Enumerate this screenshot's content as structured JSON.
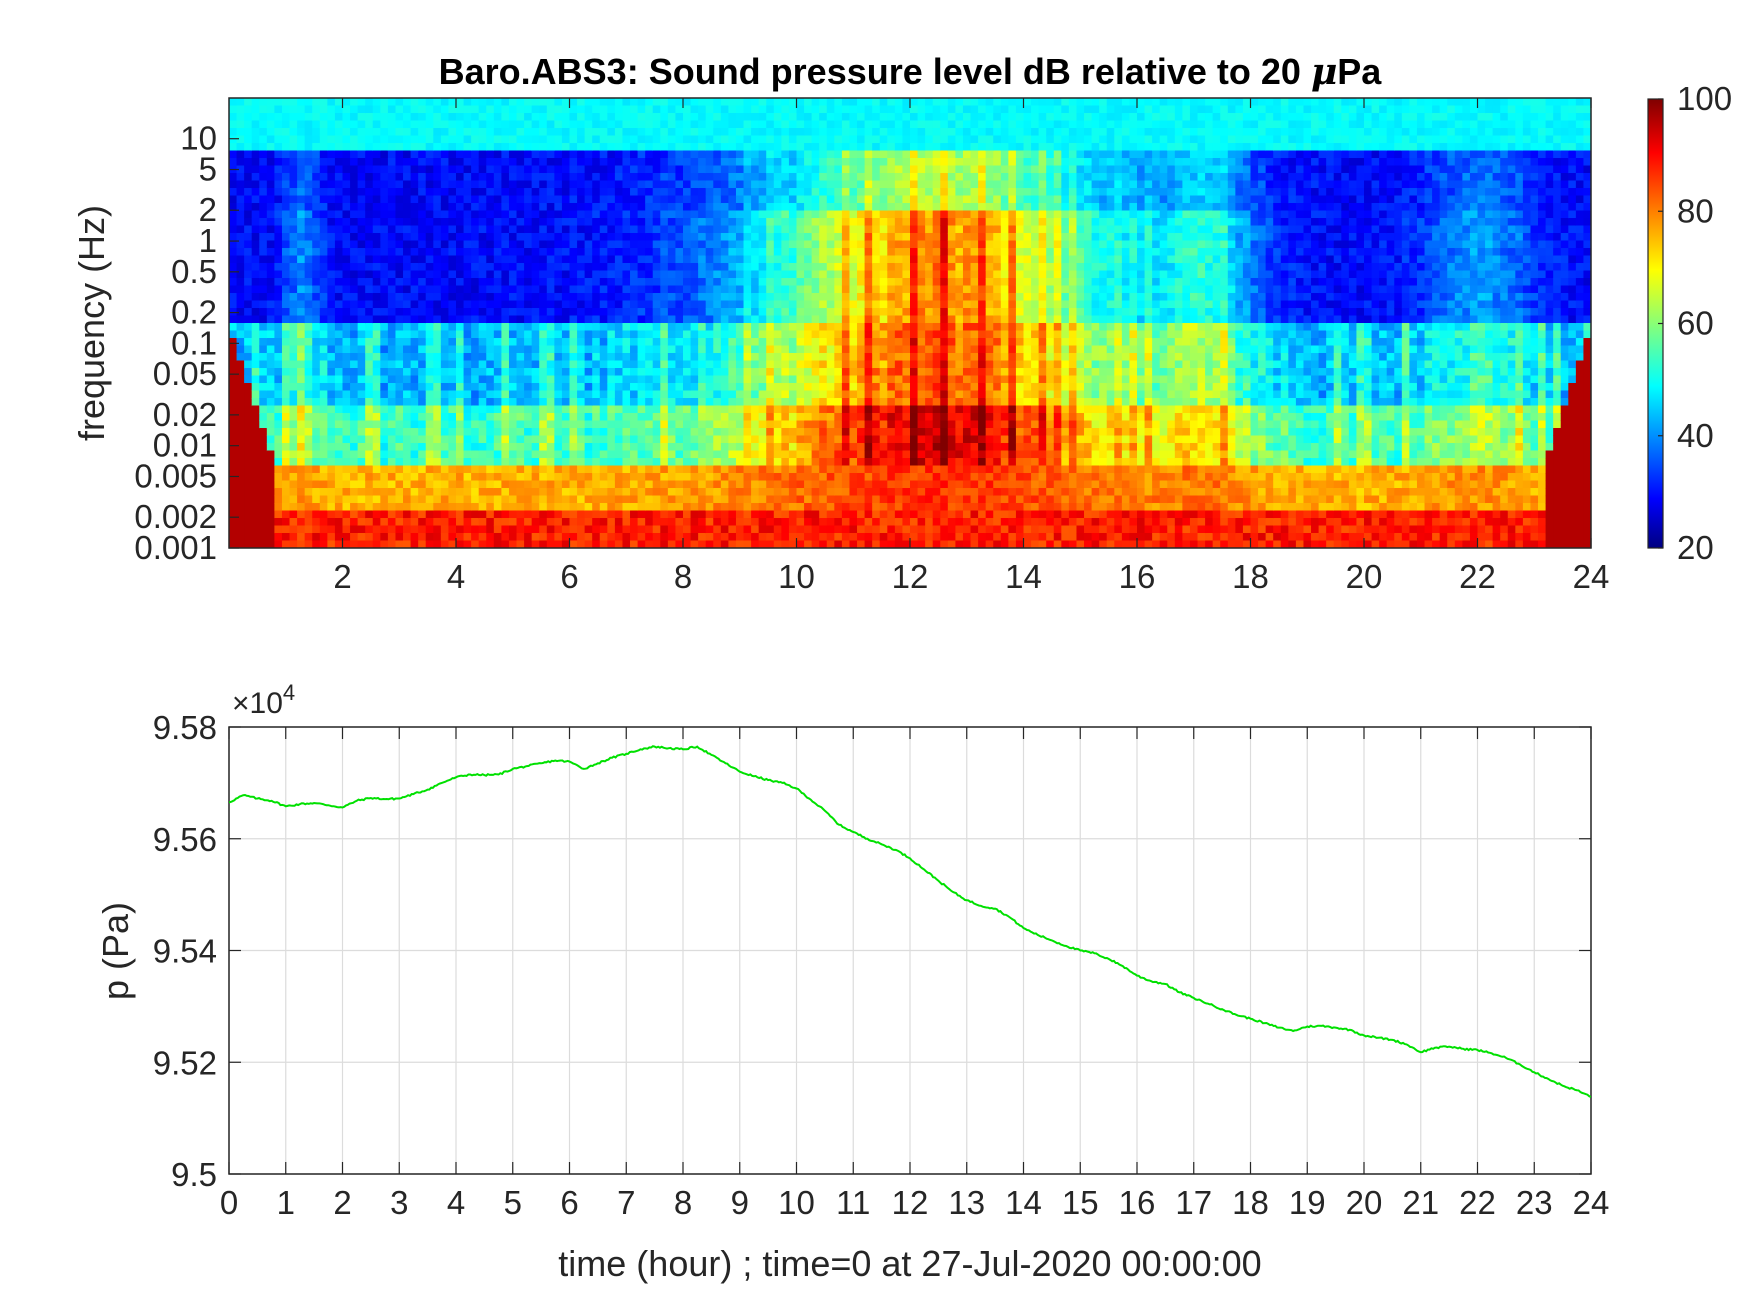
{
  "chart_data": [
    {
      "type": "heatmap",
      "title_main": "Baro.ABS3: Sound pressure level dB relative to 20 ",
      "title_mu": "μ",
      "title_unit": "Pa",
      "ylabel": "frequency (Hz)",
      "xlabel": "",
      "xlim": [
        0,
        24
      ],
      "x_ticks": [
        2,
        4,
        6,
        8,
        10,
        12,
        14,
        16,
        18,
        20,
        22,
        24
      ],
      "y_scale": "log",
      "ylim": [
        0.001,
        25
      ],
      "y_ticks": [
        {
          "value": 10,
          "label": "10"
        },
        {
          "value": 5,
          "label": "5"
        },
        {
          "value": 2,
          "label": "2"
        },
        {
          "value": 1,
          "label": "1"
        },
        {
          "value": 0.5,
          "label": "0.5"
        },
        {
          "value": 0.2,
          "label": "0.2"
        },
        {
          "value": 0.1,
          "label": "0.1"
        },
        {
          "value": 0.05,
          "label": "0.05"
        },
        {
          "value": 0.02,
          "label": "0.02"
        },
        {
          "value": 0.01,
          "label": "0.01"
        },
        {
          "value": 0.005,
          "label": "0.005"
        },
        {
          "value": 0.002,
          "label": "0.002"
        },
        {
          "value": 0.001,
          "label": "0.001"
        }
      ],
      "colormap": "jet",
      "colorbar": {
        "range": [
          20,
          100
        ],
        "ticks": [
          20,
          40,
          60,
          80,
          100
        ]
      },
      "description_of_values": "Energy approx. 45 dB at 10-25 Hz, 25-35 dB at 0.1-5 Hz outside 9-17 h, rising to 70-90 dB over 9-17 h; 80-100 dB below 0.005 Hz throughout.",
      "grid": false
    },
    {
      "type": "line",
      "ylabel": "p (Pa)",
      "xlabel": "time (hour) ; time=0 at 27-Jul-2020 00:00:00",
      "exponent_label": "×10",
      "exponent_power": "4",
      "xlim": [
        0,
        24
      ],
      "ylim": [
        9.5,
        9.58
      ],
      "y_scale_factor": 10000,
      "x_ticks": [
        0,
        1,
        2,
        3,
        4,
        5,
        6,
        7,
        8,
        9,
        10,
        11,
        12,
        13,
        14,
        15,
        16,
        17,
        18,
        19,
        20,
        21,
        22,
        23,
        24
      ],
      "y_ticks": [
        9.5,
        9.52,
        9.54,
        9.56,
        9.58
      ],
      "y_tick_labels": [
        "9.5",
        "9.52",
        "9.54",
        "9.56",
        "9.58"
      ],
      "grid": true,
      "series": [
        {
          "color": "#00e000",
          "x": [
            0,
            0.25,
            0.5,
            0.75,
            1,
            1.25,
            1.5,
            1.75,
            2,
            2.25,
            2.5,
            2.75,
            3,
            3.25,
            3.5,
            3.75,
            4,
            4.25,
            4.5,
            4.75,
            5,
            5.25,
            5.5,
            5.75,
            6,
            6.25,
            6.5,
            6.75,
            7,
            7.25,
            7.5,
            7.75,
            8,
            8.25,
            8.5,
            8.75,
            9,
            9.25,
            9.5,
            9.75,
            10,
            10.25,
            10.5,
            10.75,
            11,
            11.25,
            11.5,
            11.75,
            12,
            12.25,
            12.5,
            12.75,
            13,
            13.25,
            13.5,
            13.75,
            14,
            14.25,
            14.5,
            14.75,
            15,
            15.25,
            15.5,
            15.75,
            16,
            16.25,
            16.5,
            16.75,
            17,
            17.25,
            17.5,
            17.75,
            18,
            18.25,
            18.5,
            18.75,
            19,
            19.25,
            19.5,
            19.75,
            20,
            20.25,
            20.5,
            20.75,
            21,
            21.25,
            21.5,
            21.75,
            22,
            22.25,
            22.5,
            22.75,
            23,
            23.25,
            23.5,
            23.75,
            24
          ],
          "y": [
            9.5665,
            9.5678,
            9.5672,
            9.5668,
            9.5658,
            9.5662,
            9.5664,
            9.566,
            9.5656,
            9.5668,
            9.5673,
            9.5671,
            9.5672,
            9.568,
            9.5688,
            9.57,
            9.571,
            9.5715,
            9.5714,
            9.5715,
            9.5725,
            9.573,
            9.5735,
            9.574,
            9.5738,
            9.5725,
            9.5735,
            9.5745,
            9.5752,
            9.576,
            9.5765,
            9.5762,
            9.576,
            9.5765,
            9.575,
            9.5735,
            9.572,
            9.5712,
            9.5705,
            9.57,
            9.569,
            9.567,
            9.565,
            9.5625,
            9.5612,
            9.56,
            9.559,
            9.558,
            9.5565,
            9.5545,
            9.5525,
            9.5505,
            9.549,
            9.548,
            9.5475,
            9.546,
            9.544,
            9.5428,
            9.5418,
            9.5408,
            9.54,
            9.5395,
            9.5385,
            9.5372,
            9.5355,
            9.5345,
            9.534,
            9.5325,
            9.5315,
            9.5305,
            9.5295,
            9.5285,
            9.5278,
            9.527,
            9.5262,
            9.5256,
            9.5264,
            9.5265,
            9.5262,
            9.5258,
            9.5248,
            9.5244,
            9.524,
            9.5232,
            9.5218,
            9.5226,
            9.5228,
            9.5224,
            9.5222,
            9.5216,
            9.5208,
            9.5196,
            9.5182,
            9.517,
            9.5158,
            9.515,
            9.5138
          ]
        }
      ]
    }
  ]
}
